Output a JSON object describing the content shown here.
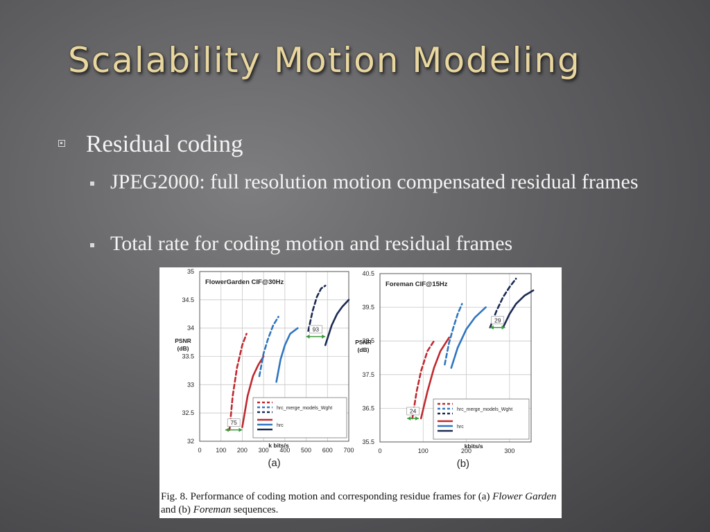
{
  "slide": {
    "title": "Scalability Motion Modeling",
    "bullets": [
      {
        "text": "Residual coding"
      },
      {
        "text": "JPEG2000: full resolution motion compensated residual frames"
      },
      {
        "text": "Total rate for coding motion and residual frames"
      }
    ]
  },
  "figure": {
    "caption_prefix": "Fig. 8.   Performance of coding motion and corresponding residue frames for (a) ",
    "caption_a": "Flower Garden",
    "caption_mid": " and (b) ",
    "caption_b": "Foreman",
    "caption_suffix": " sequences."
  },
  "colors": {
    "red": "#c0282d",
    "blue": "#2e75c0",
    "navy": "#1c2a52",
    "arrow": "#3a9a3a",
    "title": "#e9d7a0"
  },
  "chart_data": [
    {
      "type": "line",
      "title": "FlowerGarden  CIF@30Hz",
      "xlabel": "k bits/s",
      "ylabel": "PSNR (dB)",
      "xlim": [
        0,
        700
      ],
      "ylim": [
        32,
        35
      ],
      "xticks": [
        "0",
        "100",
        "200",
        "300",
        "400",
        "500",
        "600",
        "700"
      ],
      "yticks": [
        "32",
        "32.5",
        "33",
        "33.5",
        "34",
        "34.5",
        "35"
      ],
      "panel_label": "(a)",
      "grid": true,
      "legend_position": "bottom-right",
      "legend_labels": [
        "hrc_merge_models_Wght",
        "hrc"
      ],
      "annotations": [
        {
          "label": "75",
          "x1": 120,
          "x2": 200,
          "y": 32.2
        },
        {
          "label": "93",
          "x1": 500,
          "x2": 590,
          "y": 33.85
        }
      ],
      "series": [
        {
          "color": "red",
          "dashed": true,
          "x": [
            140,
            155,
            175,
            200,
            220
          ],
          "y": [
            32.2,
            32.8,
            33.3,
            33.7,
            33.9
          ]
        },
        {
          "color": "red",
          "dashed": false,
          "x": [
            200,
            225,
            250,
            275,
            300
          ],
          "y": [
            32.25,
            32.8,
            33.15,
            33.35,
            33.5
          ]
        },
        {
          "color": "blue",
          "dashed": true,
          "x": [
            280,
            300,
            320,
            345,
            370
          ],
          "y": [
            33.15,
            33.55,
            33.8,
            34.05,
            34.2
          ]
        },
        {
          "color": "blue",
          "dashed": false,
          "x": [
            360,
            380,
            400,
            425,
            460
          ],
          "y": [
            33.05,
            33.45,
            33.7,
            33.9,
            34.0
          ]
        },
        {
          "color": "navy",
          "dashed": true,
          "x": [
            510,
            530,
            550,
            570,
            590
          ],
          "y": [
            33.95,
            34.3,
            34.55,
            34.7,
            34.75
          ]
        },
        {
          "color": "navy",
          "dashed": false,
          "x": [
            590,
            620,
            645,
            670,
            700
          ],
          "y": [
            33.7,
            34.05,
            34.25,
            34.38,
            34.5
          ]
        }
      ]
    },
    {
      "type": "line",
      "title": "Foreman  CIF@15Hz",
      "xlabel": "kbits/s",
      "ylabel": "PSNR (dB)",
      "xlim": [
        0,
        350
      ],
      "ylim": [
        35.5,
        40.5
      ],
      "xticks": [
        "0",
        "100",
        "200",
        "300"
      ],
      "yticks": [
        "35.5",
        "36.5",
        "37.5",
        "38.5",
        "39.5",
        "40.5"
      ],
      "panel_label": "(b)",
      "grid": true,
      "legend_position": "bottom-right",
      "legend_labels": [
        "hrc_merge_models_Wght",
        "hrc"
      ],
      "annotations": [
        {
          "label": "24",
          "x1": 63,
          "x2": 90,
          "y": 36.2
        },
        {
          "label": "29",
          "x1": 255,
          "x2": 290,
          "y": 38.9
        }
      ],
      "series": [
        {
          "color": "red",
          "dashed": true,
          "x": [
            75,
            85,
            95,
            110,
            125
          ],
          "y": [
            36.2,
            37.0,
            37.6,
            38.2,
            38.5
          ]
        },
        {
          "color": "red",
          "dashed": false,
          "x": [
            95,
            110,
            125,
            140,
            160
          ],
          "y": [
            36.2,
            37.0,
            37.7,
            38.2,
            38.6
          ]
        },
        {
          "color": "blue",
          "dashed": true,
          "x": [
            150,
            160,
            170,
            180,
            190
          ],
          "y": [
            37.8,
            38.45,
            38.9,
            39.3,
            39.6
          ]
        },
        {
          "color": "blue",
          "dashed": false,
          "x": [
            165,
            180,
            200,
            220,
            245
          ],
          "y": [
            37.7,
            38.3,
            38.85,
            39.2,
            39.5
          ]
        },
        {
          "color": "navy",
          "dashed": true,
          "x": [
            255,
            270,
            285,
            300,
            315
          ],
          "y": [
            38.9,
            39.4,
            39.8,
            40.1,
            40.35
          ]
        },
        {
          "color": "navy",
          "dashed": false,
          "x": [
            285,
            300,
            315,
            335,
            355
          ],
          "y": [
            38.9,
            39.3,
            39.6,
            39.85,
            40.0
          ]
        }
      ]
    }
  ]
}
